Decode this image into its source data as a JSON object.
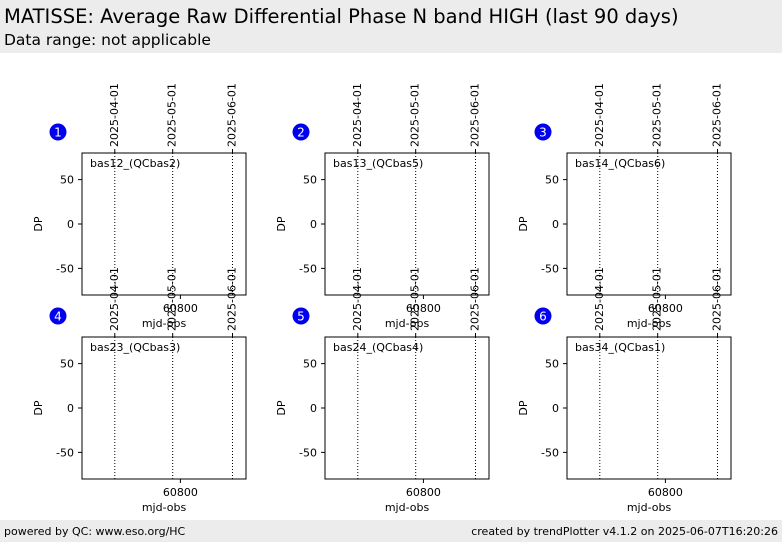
{
  "header": {
    "title": "MATISSE: Average Raw Differential Phase N band HIGH (last 90 days)",
    "subtitle": "Data range: not applicable"
  },
  "footer": {
    "left": "powered by QC: www.eso.org/HC",
    "right": "created by trendPlotter v4.1.2 on 2025-06-07T16:20:26"
  },
  "colors": {
    "badge": "#0000ee",
    "axis": "#000000",
    "header_bg": "#ececec"
  },
  "chart_data": [
    {
      "type": "scatter",
      "panel_number": "1",
      "label": "bas12_(QCbas2)",
      "xlabel": "mjd-obs",
      "ylabel": "DP",
      "xlim": [
        60749.0,
        60834.0
      ],
      "ylim": [
        -80,
        80
      ],
      "yticks": [
        50,
        0,
        -50
      ],
      "xticks": [
        60800
      ],
      "date_lines": [
        {
          "label": "2025-04-01",
          "mjd": 60766
        },
        {
          "label": "2025-05-01",
          "mjd": 60796
        },
        {
          "label": "2025-06-01",
          "mjd": 60827
        }
      ],
      "points": []
    },
    {
      "type": "scatter",
      "panel_number": "2",
      "label": "bas13_(QCbas5)",
      "xlabel": "mjd-obs",
      "ylabel": "DP",
      "xlim": [
        60749.0,
        60834.0
      ],
      "ylim": [
        -80,
        80
      ],
      "yticks": [
        50,
        0,
        -50
      ],
      "xticks": [
        60800
      ],
      "date_lines": [
        {
          "label": "2025-04-01",
          "mjd": 60766
        },
        {
          "label": "2025-05-01",
          "mjd": 60796
        },
        {
          "label": "2025-06-01",
          "mjd": 60827
        }
      ],
      "points": []
    },
    {
      "type": "scatter",
      "panel_number": "3",
      "label": "bas14_(QCbas6)",
      "xlabel": "mjd-obs",
      "ylabel": "DP",
      "xlim": [
        60749.0,
        60834.0
      ],
      "ylim": [
        -80,
        80
      ],
      "yticks": [
        50,
        0,
        -50
      ],
      "xticks": [
        60800
      ],
      "date_lines": [
        {
          "label": "2025-04-01",
          "mjd": 60766
        },
        {
          "label": "2025-05-01",
          "mjd": 60796
        },
        {
          "label": "2025-06-01",
          "mjd": 60827
        }
      ],
      "points": []
    },
    {
      "type": "scatter",
      "panel_number": "4",
      "label": "bas23_(QCbas3)",
      "xlabel": "mjd-obs",
      "ylabel": "DP",
      "xlim": [
        60749.0,
        60834.0
      ],
      "ylim": [
        -80,
        80
      ],
      "yticks": [
        50,
        0,
        -50
      ],
      "xticks": [
        60800
      ],
      "date_lines": [
        {
          "label": "2025-04-01",
          "mjd": 60766
        },
        {
          "label": "2025-05-01",
          "mjd": 60796
        },
        {
          "label": "2025-06-01",
          "mjd": 60827
        }
      ],
      "points": []
    },
    {
      "type": "scatter",
      "panel_number": "5",
      "label": "bas24_(QCbas4)",
      "xlabel": "mjd-obs",
      "ylabel": "DP",
      "xlim": [
        60749.0,
        60834.0
      ],
      "ylim": [
        -80,
        80
      ],
      "yticks": [
        50,
        0,
        -50
      ],
      "xticks": [
        60800
      ],
      "date_lines": [
        {
          "label": "2025-04-01",
          "mjd": 60766
        },
        {
          "label": "2025-05-01",
          "mjd": 60796
        },
        {
          "label": "2025-06-01",
          "mjd": 60827
        }
      ],
      "points": []
    },
    {
      "type": "scatter",
      "panel_number": "6",
      "label": "bas34_(QCbas1)",
      "xlabel": "mjd-obs",
      "ylabel": "DP",
      "xlim": [
        60749.0,
        60834.0
      ],
      "ylim": [
        -80,
        80
      ],
      "yticks": [
        50,
        0,
        -50
      ],
      "xticks": [
        60800
      ],
      "date_lines": [
        {
          "label": "2025-04-01",
          "mjd": 60766
        },
        {
          "label": "2025-05-01",
          "mjd": 60796
        },
        {
          "label": "2025-06-01",
          "mjd": 60827
        }
      ],
      "points": []
    }
  ]
}
